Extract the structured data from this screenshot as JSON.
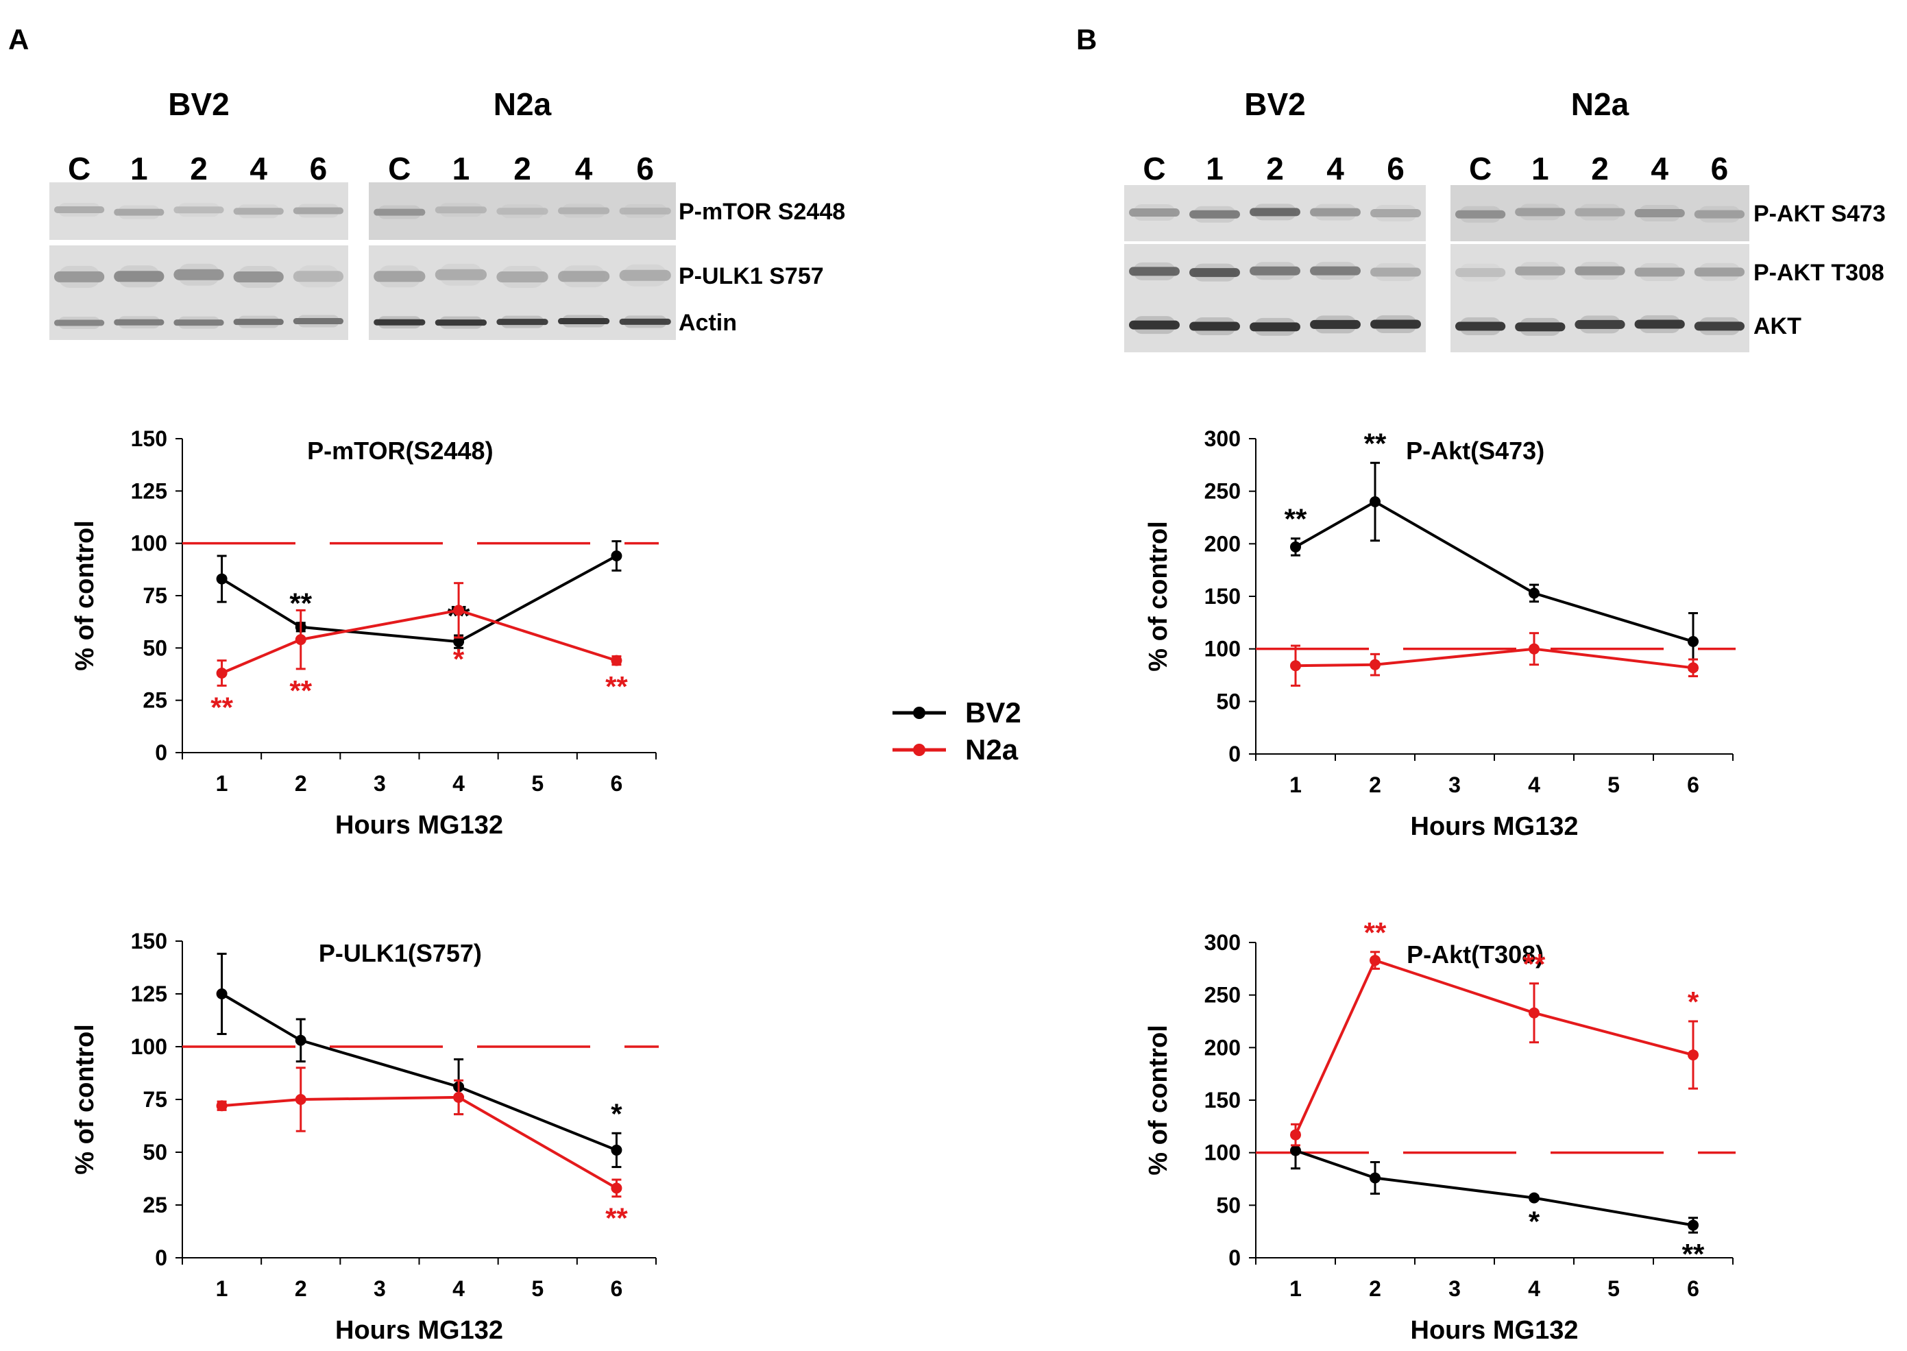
{
  "panels": [
    {
      "letter": "A",
      "blot": {
        "groups": [
          {
            "name": "BV2",
            "lanes": [
              "C",
              "1",
              "2",
              "4",
              "6"
            ]
          },
          {
            "name": "N2a",
            "lanes": [
              "C",
              "1",
              "2",
              "4",
              "6"
            ]
          }
        ],
        "rows": [
          "P-mTOR S2448",
          "P-ULK1 S757",
          "Actin"
        ]
      }
    },
    {
      "letter": "B",
      "blot": {
        "groups": [
          {
            "name": "BV2",
            "lanes": [
              "C",
              "1",
              "2",
              "4",
              "6"
            ]
          },
          {
            "name": "N2a",
            "lanes": [
              "C",
              "1",
              "2",
              "4",
              "6"
            ]
          }
        ],
        "rows": [
          "P-AKT S473",
          "P-AKT T308",
          "AKT"
        ]
      }
    }
  ],
  "legend": {
    "entries": [
      {
        "label": "BV2",
        "color": "#000000"
      },
      {
        "label": "N2a",
        "color": "#e41a1c"
      }
    ]
  },
  "chart_data": [
    {
      "type": "line",
      "title": "P-mTOR(S2448)",
      "xlabel": "Hours MG132",
      "ylabel": "% of control",
      "xlim": [
        0.5,
        6.5
      ],
      "xticks": [
        1,
        2,
        3,
        4,
        5,
        6
      ],
      "ylim": [
        0,
        150
      ],
      "yticks": [
        0,
        25,
        50,
        75,
        100,
        125,
        150
      ],
      "reference_line": 100,
      "grid": false,
      "series": [
        {
          "name": "BV2",
          "color": "#000000",
          "x": [
            1,
            2,
            4,
            6
          ],
          "y": [
            83,
            60,
            53,
            94
          ],
          "err": [
            11,
            2,
            3,
            7
          ],
          "stars": [
            "",
            "**",
            "**",
            ""
          ],
          "star_pos": [
            "",
            "above",
            "above",
            ""
          ]
        },
        {
          "name": "N2a",
          "color": "#e41a1c",
          "x": [
            1,
            2,
            4,
            6
          ],
          "y": [
            38,
            54,
            68,
            44
          ],
          "err": [
            6,
            14,
            13,
            2
          ],
          "stars": [
            "**",
            "**",
            "*",
            "**"
          ],
          "star_pos": [
            "below",
            "below",
            "below",
            "below"
          ]
        }
      ]
    },
    {
      "type": "line",
      "title": "P-ULK1(S757)",
      "xlabel": "Hours MG132",
      "ylabel": "% of control",
      "xlim": [
        0.5,
        6.5
      ],
      "xticks": [
        1,
        2,
        3,
        4,
        5,
        6
      ],
      "ylim": [
        0,
        150
      ],
      "yticks": [
        0,
        25,
        50,
        75,
        100,
        125,
        150
      ],
      "reference_line": 100,
      "grid": false,
      "series": [
        {
          "name": "BV2",
          "color": "#000000",
          "x": [
            1,
            2,
            4,
            6
          ],
          "y": [
            125,
            103,
            81,
            51
          ],
          "err": [
            19,
            10,
            13,
            8
          ],
          "stars": [
            "",
            "",
            "",
            "*"
          ],
          "star_pos": [
            "",
            "",
            "",
            "above"
          ]
        },
        {
          "name": "N2a",
          "color": "#e41a1c",
          "x": [
            1,
            2,
            4,
            6
          ],
          "y": [
            72,
            75,
            76,
            33
          ],
          "err": [
            2,
            15,
            8,
            4
          ],
          "stars": [
            "",
            "",
            "",
            "**"
          ],
          "star_pos": [
            "",
            "",
            "",
            "below"
          ]
        }
      ]
    },
    {
      "type": "line",
      "title": "P-Akt(S473)",
      "xlabel": "Hours MG132",
      "ylabel": "% of control",
      "xlim": [
        0.5,
        6.5
      ],
      "xticks": [
        1,
        2,
        3,
        4,
        5,
        6
      ],
      "ylim": [
        0,
        300
      ],
      "yticks": [
        0,
        50,
        100,
        150,
        200,
        250,
        300
      ],
      "reference_line": 100,
      "grid": false,
      "series": [
        {
          "name": "BV2",
          "color": "#000000",
          "x": [
            1,
            2,
            4,
            6
          ],
          "y": [
            197,
            240,
            153,
            107
          ],
          "err": [
            8,
            37,
            8,
            27
          ],
          "stars": [
            "**",
            "**",
            "",
            ""
          ],
          "star_pos": [
            "above",
            "above",
            "",
            ""
          ]
        },
        {
          "name": "N2a",
          "color": "#e41a1c",
          "x": [
            1,
            2,
            4,
            6
          ],
          "y": [
            84,
            85,
            100,
            82
          ],
          "err": [
            19,
            10,
            15,
            8
          ],
          "stars": [
            "",
            "",
            "",
            ""
          ],
          "star_pos": [
            "",
            "",
            "",
            ""
          ]
        }
      ]
    },
    {
      "type": "line",
      "title": "P-Akt(T308)",
      "xlabel": "Hours MG132",
      "ylabel": "% of control",
      "xlim": [
        0.5,
        6.5
      ],
      "xticks": [
        1,
        2,
        3,
        4,
        5,
        6
      ],
      "ylim": [
        0,
        300
      ],
      "yticks": [
        0,
        50,
        100,
        150,
        200,
        250,
        300
      ],
      "reference_line": 100,
      "grid": false,
      "series": [
        {
          "name": "BV2",
          "color": "#000000",
          "x": [
            1,
            2,
            4,
            6
          ],
          "y": [
            102,
            76,
            57,
            31
          ],
          "err": [
            17,
            15,
            2,
            7
          ],
          "stars": [
            "",
            "",
            "*",
            "**"
          ],
          "star_pos": [
            "",
            "",
            "below",
            "below"
          ]
        },
        {
          "name": "N2a",
          "color": "#e41a1c",
          "x": [
            1,
            2,
            4,
            6
          ],
          "y": [
            117,
            283,
            233,
            193
          ],
          "err": [
            10,
            8,
            28,
            32
          ],
          "stars": [
            "",
            "**",
            "**",
            "*"
          ],
          "star_pos": [
            "",
            "above",
            "above",
            "above"
          ]
        }
      ]
    }
  ]
}
